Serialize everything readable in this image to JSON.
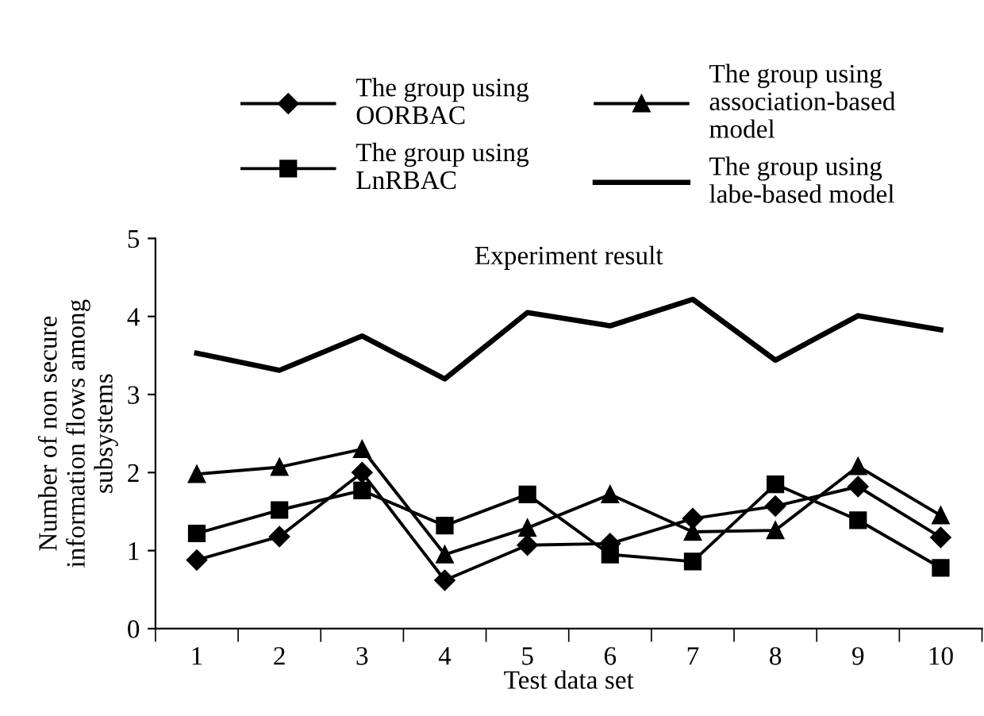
{
  "chart_data": {
    "type": "line",
    "title": "Experiment result",
    "xlabel": "Test data set",
    "ylabel": "Number of non secure\ninformation flows among\nsubsystems",
    "categories": [
      "1",
      "2",
      "3",
      "4",
      "5",
      "6",
      "7",
      "8",
      "9",
      "10"
    ],
    "series": [
      {
        "name": "The group using\nOORBAC",
        "color": "#000000",
        "marker": "diamond",
        "values": [
          0.88,
          1.18,
          2.0,
          0.62,
          1.07,
          1.09,
          1.41,
          1.57,
          1.82,
          1.17
        ]
      },
      {
        "name": "The group using\nLnRBAC",
        "color": "#000000",
        "marker": "square",
        "values": [
          1.22,
          1.52,
          1.77,
          1.32,
          1.72,
          0.95,
          0.86,
          1.85,
          1.39,
          0.78
        ]
      },
      {
        "name": "The group using\nassociation-based\nmodel",
        "color": "#000000",
        "marker": "triangle",
        "values": [
          1.98,
          2.07,
          2.3,
          0.95,
          1.29,
          1.72,
          1.24,
          1.26,
          2.08,
          1.45
        ]
      },
      {
        "name": "The group using\nlabe-based model",
        "color": "#000000",
        "marker": "none",
        "values": [
          3.53,
          3.31,
          3.75,
          3.2,
          4.05,
          3.88,
          4.22,
          3.44,
          4.01,
          3.83
        ]
      }
    ],
    "ylim": [
      0,
      5
    ],
    "yticks": [
      0,
      1,
      2,
      3,
      4,
      5
    ],
    "grid": false,
    "legend": "top",
    "line_style": "solid"
  }
}
